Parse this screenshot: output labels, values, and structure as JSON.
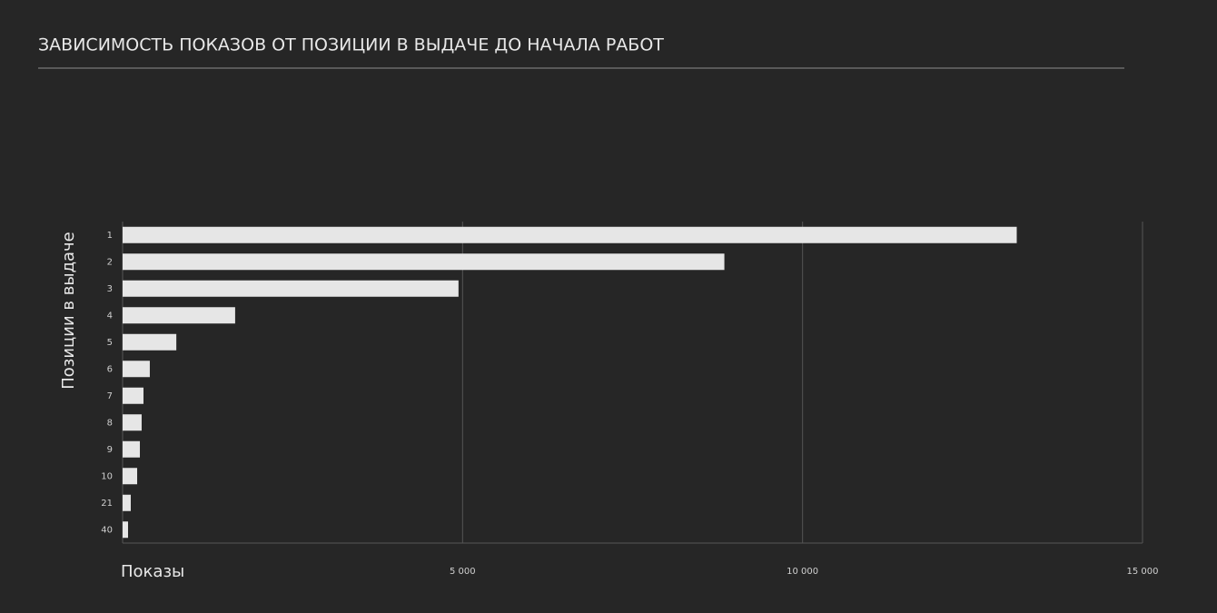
{
  "chart_data": {
    "type": "barh",
    "title": "ЗАВИСИМОСТЬ ПОКАЗОВ ОТ ПОЗИЦИИ В ВЫДАЧЕ ДО НАЧАЛА РАБОТ",
    "x_label": "Показы",
    "y_label": "Позиции в выдаче",
    "categories": [
      "1",
      "2",
      "3",
      "4",
      "5",
      "6",
      "7",
      "8",
      "9",
      "10",
      "21",
      "40"
    ],
    "values": [
      13150,
      8850,
      4940,
      1655,
      790,
      400,
      307,
      280,
      254,
      214,
      120,
      80
    ],
    "color": "#e6e6e6",
    "xlim": [
      0,
      15000
    ],
    "xticks": [
      {
        "value": 5000,
        "label": "5 000"
      },
      {
        "value": 10000,
        "label": "10 000"
      },
      {
        "value": 15000,
        "label": "15 000"
      }
    ],
    "grid": true
  }
}
